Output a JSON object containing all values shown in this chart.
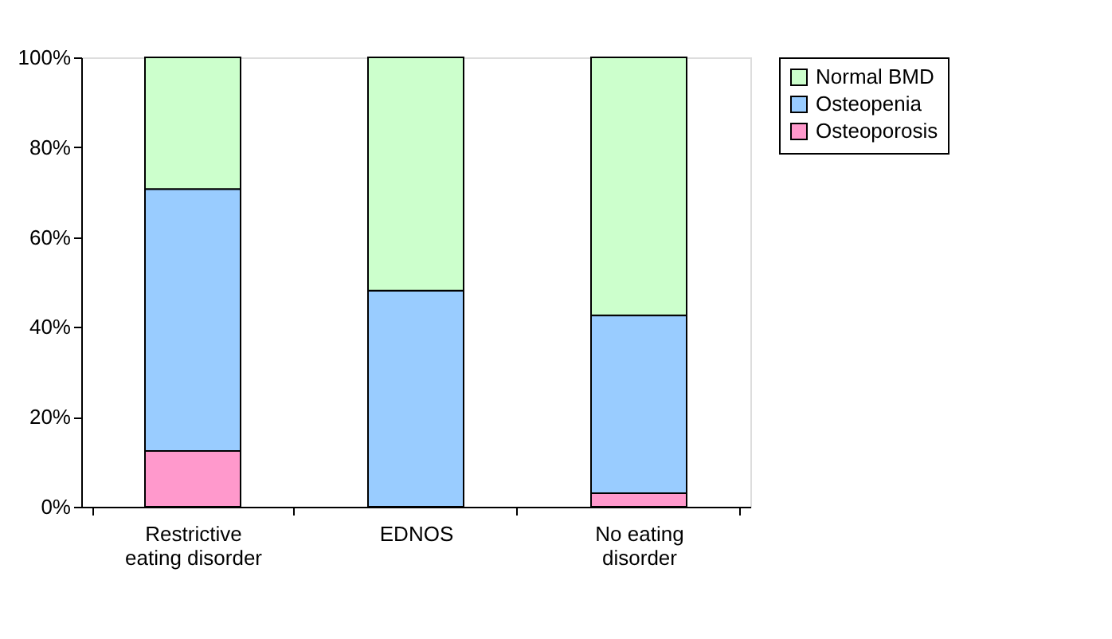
{
  "chart_data": {
    "type": "bar",
    "stacked": true,
    "categories": [
      "Restrictive eating disorder",
      "EDNOS",
      "No eating disorder"
    ],
    "series": [
      {
        "name": "Osteoporosis",
        "color": "#ff99cc",
        "values": [
          12.4,
          0,
          3.0
        ]
      },
      {
        "name": "Osteopenia",
        "color": "#99ccff",
        "values": [
          58.3,
          48.1,
          39.6
        ]
      },
      {
        "name": "Normal BMD",
        "color": "#ccffcc",
        "values": [
          29.3,
          51.9,
          57.4
        ]
      }
    ],
    "ylim": [
      0,
      100
    ],
    "yticks": [
      {
        "value": 0,
        "label": "0%"
      },
      {
        "value": 20,
        "label": "20%"
      },
      {
        "value": 40,
        "label": "40%"
      },
      {
        "value": 60,
        "label": "60%"
      },
      {
        "value": 80,
        "label": "80%"
      },
      {
        "value": 100,
        "label": "100%"
      }
    ],
    "grid": false,
    "legend": "right"
  }
}
